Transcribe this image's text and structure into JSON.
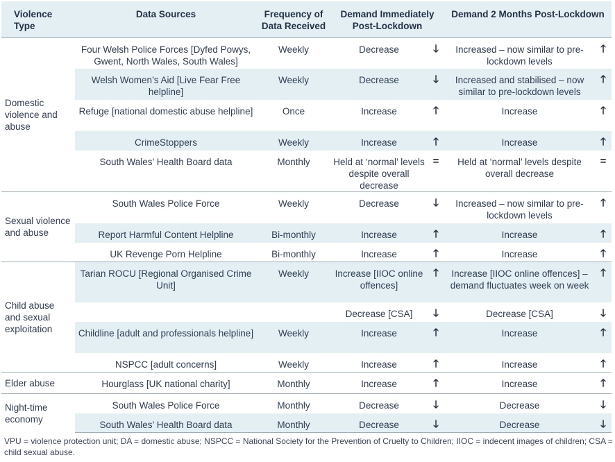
{
  "header": {
    "violence_type": "Violence Type",
    "data_sources": "Data Sources",
    "frequency": "Frequency of Data Received",
    "demand_immediate": "Demand Immediately Post-Lockdown",
    "demand_2months": "Demand 2 Months Post-Lockdown"
  },
  "groups": [
    {
      "label": "Domestic violence and abuse",
      "rows": [
        {
          "source": "Four Welsh Police Forces [Dyfed Powys, Gwent, North Wales, South Wales]",
          "frequency": "Weekly",
          "immediate": "Decrease",
          "immediate_arrow": "down",
          "two_month": "Increased – now similar to pre-lockdown levels",
          "two_month_arrow": "up"
        },
        {
          "source": "Welsh Women’s Aid [Live Fear Free helpline]",
          "frequency": "Weekly",
          "immediate": "Decrease",
          "immediate_arrow": "down",
          "two_month": "Increased and stabilised – now similar to pre-lockdown levels",
          "two_month_arrow": "up"
        },
        {
          "source": "Refuge [national domestic abuse helpline]",
          "frequency": "Once",
          "immediate": "Increase",
          "immediate_arrow": "up",
          "two_month": "Increase",
          "two_month_arrow": "up"
        },
        {
          "source": "CrimeStoppers",
          "frequency": "Weekly",
          "immediate": "Increase",
          "immediate_arrow": "up",
          "two_month": "Increase",
          "two_month_arrow": "up"
        },
        {
          "source": "South Wales’ Health Board data",
          "frequency": "Monthly",
          "immediate": "Held at ‘normal’ levels despite overall decrease",
          "immediate_arrow": "equal",
          "two_month": "Held at ‘normal’ levels despite overall decrease",
          "two_month_arrow": "equal"
        }
      ]
    },
    {
      "label": "Sexual violence and abuse",
      "rows": [
        {
          "source": "South Wales Police Force",
          "frequency": "Weekly",
          "immediate": "Decrease",
          "immediate_arrow": "down",
          "two_month": "Increased – now similar to pre-lockdown levels",
          "two_month_arrow": "up"
        },
        {
          "source": "Report Harmful Content Helpline",
          "frequency": "Bi-monthly",
          "immediate": "Increase",
          "immediate_arrow": "up",
          "two_month": "Increase",
          "two_month_arrow": "up"
        },
        {
          "source": "UK Revenge Porn Helpline",
          "frequency": "Bi-monthly",
          "immediate": "Increase",
          "immediate_arrow": "up",
          "two_month": "Increase",
          "two_month_arrow": "up"
        }
      ]
    },
    {
      "label": "Child abuse and sexual exploitation",
      "rows": [
        {
          "source": "Tarian ROCU [Regional Organised Crime Unit]",
          "frequency": "Weekly",
          "immediate": "Increase [IIOC online offences]",
          "immediate_arrow": "up",
          "two_month": "Increase [IIOC online offences] – demand fluctuates week on week",
          "two_month_arrow": "up"
        },
        {
          "source": "",
          "frequency": "",
          "immediate": "Decrease [CSA]",
          "immediate_arrow": "down",
          "two_month": "Decrease [CSA]",
          "two_month_arrow": "down"
        },
        {
          "source": "Childline [adult and professionals helpline]",
          "frequency": "Weekly",
          "immediate": "Increase",
          "immediate_arrow": "up",
          "two_month": "Increase",
          "two_month_arrow": "up"
        },
        {
          "source": "NSPCC [adult concerns]",
          "frequency": "Weekly",
          "immediate": "Increase",
          "immediate_arrow": "up",
          "two_month": "Increase",
          "two_month_arrow": "up"
        }
      ]
    },
    {
      "label": "Elder abuse",
      "rows": [
        {
          "source": "Hourglass [UK national charity]",
          "frequency": "Monthly",
          "immediate": "Increase",
          "immediate_arrow": "up",
          "two_month": "Increase",
          "two_month_arrow": "up"
        }
      ]
    },
    {
      "label": "Night-time economy",
      "rows": [
        {
          "source": "South Wales Police Force",
          "frequency": "Monthly",
          "immediate": "Decrease",
          "immediate_arrow": "down",
          "two_month": "Decrease",
          "two_month_arrow": "down"
        },
        {
          "source": "South Wales’ Health Board data",
          "frequency": "Monthly",
          "immediate": "Decrease",
          "immediate_arrow": "down",
          "two_month": "Decrease",
          "two_month_arrow": "down"
        }
      ]
    }
  ],
  "footnote": "VPU = violence protection unit; DA = domestic abuse; NSPCC = National Society for the Prevention of Cruelty to Children; IIOC = indecent images of children; CSA = child sexual abuse."
}
